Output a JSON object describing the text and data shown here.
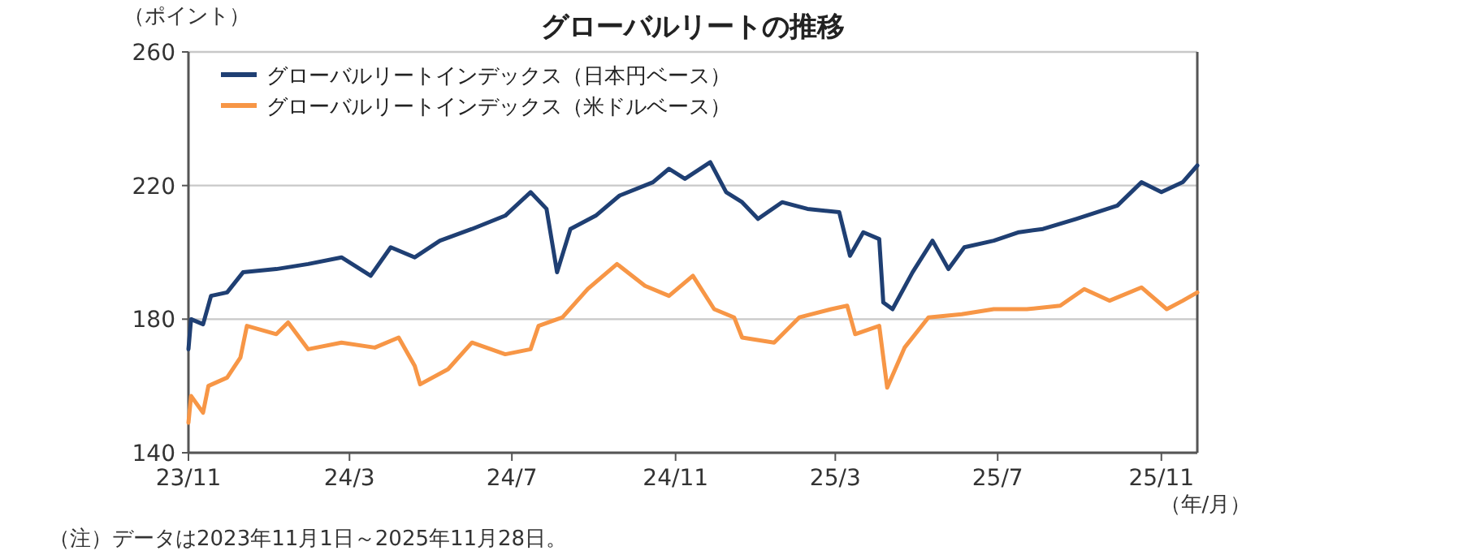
{
  "chart_data": {
    "type": "line",
    "title": "グローバルリートの推移",
    "ylabel": "（ポイント）",
    "xlabel": "（年/月）",
    "xlim": [
      "2023-11-01",
      "2025-11-28"
    ],
    "xticks": [
      {
        "value": "2023-11-01",
        "label": "23/11"
      },
      {
        "value": "2024-03-01",
        "label": "24/3"
      },
      {
        "value": "2024-07-01",
        "label": "24/7"
      },
      {
        "value": "2024-11-01",
        "label": "24/11"
      },
      {
        "value": "2025-03-01",
        "label": "25/3"
      },
      {
        "value": "2025-07-01",
        "label": "25/7"
      },
      {
        "value": "2025-11-01",
        "label": "25/11"
      }
    ],
    "ylim": [
      140,
      260
    ],
    "yticks": [
      140,
      180,
      220,
      260
    ],
    "grid": "y",
    "legend": "top left",
    "line_style": "solid",
    "marker": "none",
    "series": [
      {
        "name": "グローバルリートインデックス（日本円ベース）",
        "color": "#1f3f73",
        "x": [
          "2023-11-01",
          "2023-11-03",
          "2023-11-12",
          "2023-11-18",
          "2023-11-30",
          "2023-12-12",
          "2024-01-06",
          "2024-01-30",
          "2024-02-24",
          "2024-03-17",
          "2024-04-01",
          "2024-04-19",
          "2024-05-08",
          "2024-06-01",
          "2024-06-26",
          "2024-07-15",
          "2024-07-27",
          "2024-08-04",
          "2024-08-14",
          "2024-09-02",
          "2024-09-20",
          "2024-10-15",
          "2024-10-27",
          "2024-11-08",
          "2024-11-27",
          "2024-12-09",
          "2024-12-21",
          "2025-01-02",
          "2025-01-20",
          "2025-02-08",
          "2025-03-04",
          "2025-03-12",
          "2025-03-22",
          "2025-04-03",
          "2025-04-06",
          "2025-04-13",
          "2025-04-28",
          "2025-05-13",
          "2025-05-25",
          "2025-06-06",
          "2025-06-28",
          "2025-07-17",
          "2025-08-04",
          "2025-08-29",
          "2025-09-29",
          "2025-10-17",
          "2025-11-01",
          "2025-11-17",
          "2025-11-28"
        ],
        "values": [
          171,
          180,
          178.5,
          187,
          188,
          194,
          195,
          196.5,
          198.5,
          193,
          201.5,
          198.5,
          203.5,
          207,
          211,
          218,
          213,
          194,
          207,
          211,
          217,
          221,
          225,
          222,
          227,
          218,
          215,
          210,
          215,
          213,
          212,
          199,
          206,
          204,
          185,
          183,
          194,
          203.5,
          195,
          201.5,
          203.5,
          206,
          207,
          210,
          214,
          221,
          218,
          221,
          226
        ]
      },
      {
        "name": "グローバルリートインデックス（米ドルベース）",
        "color": "#f79646",
        "x": [
          "2023-11-01",
          "2023-11-03",
          "2023-11-12",
          "2023-11-16",
          "2023-11-30",
          "2023-12-10",
          "2023-12-15",
          "2024-01-06",
          "2024-01-15",
          "2024-01-30",
          "2024-02-24",
          "2024-03-20",
          "2024-04-07",
          "2024-04-19",
          "2024-04-23",
          "2024-05-14",
          "2024-06-01",
          "2024-06-26",
          "2024-07-15",
          "2024-07-21",
          "2024-08-08",
          "2024-08-27",
          "2024-09-18",
          "2024-10-09",
          "2024-10-27",
          "2024-11-14",
          "2024-11-30",
          "2024-12-15",
          "2024-12-21",
          "2025-01-14",
          "2025-02-02",
          "2025-02-26",
          "2025-03-10",
          "2025-03-16",
          "2025-04-03",
          "2025-04-09",
          "2025-04-22",
          "2025-05-10",
          "2025-06-04",
          "2025-06-28",
          "2025-07-23",
          "2025-08-17",
          "2025-09-04",
          "2025-09-23",
          "2025-10-17",
          "2025-11-05",
          "2025-11-17",
          "2025-11-28"
        ],
        "values": [
          149,
          157,
          152,
          160,
          162.5,
          168.5,
          178,
          175.5,
          179,
          171,
          173,
          171.5,
          174.5,
          166,
          160.5,
          165,
          173,
          169.5,
          171,
          178,
          180.5,
          189,
          196.5,
          190,
          187,
          193,
          183,
          180.5,
          174.5,
          173,
          180.5,
          183,
          184,
          175.5,
          178,
          159.5,
          171.5,
          180.5,
          181.5,
          183,
          183,
          184,
          189,
          185.5,
          189.5,
          183,
          185.5,
          188
        ]
      }
    ],
    "annotations": [
      "（注）データは2023年11月1日～2025年11月28日。"
    ]
  }
}
